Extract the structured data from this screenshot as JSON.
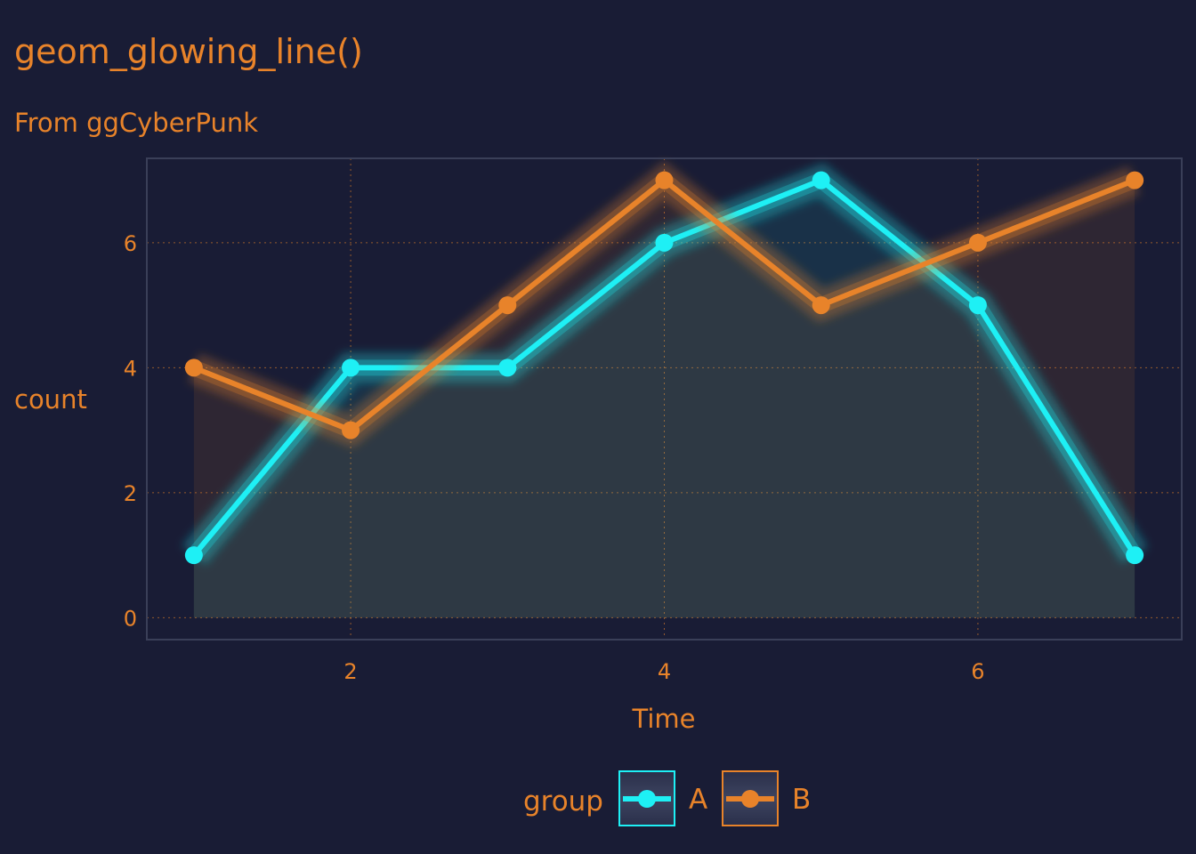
{
  "chart_data": {
    "type": "line",
    "title": "geom_glowing_line()",
    "subtitle": "From ggCyberPunk",
    "xlabel": "Time",
    "ylabel": "count",
    "x": [
      1,
      2,
      3,
      4,
      5,
      6,
      7
    ],
    "xlim": [
      0.7,
      7.3
    ],
    "ylim": [
      -0.35,
      7.35
    ],
    "xticks": [
      2,
      4,
      6
    ],
    "yticks": [
      0,
      2,
      4,
      6
    ],
    "grid": true,
    "area_fill": true,
    "legend": {
      "title": "group",
      "position": "bottom"
    },
    "background": "#191c35",
    "text_color": "#e8832a",
    "series": [
      {
        "name": "A",
        "color": "#1ef0f5",
        "values": [
          1,
          4,
          4,
          6,
          7,
          5,
          1
        ]
      },
      {
        "name": "B",
        "color": "#e8832a",
        "values": [
          4,
          3,
          5,
          7,
          5,
          6,
          7
        ]
      }
    ]
  }
}
